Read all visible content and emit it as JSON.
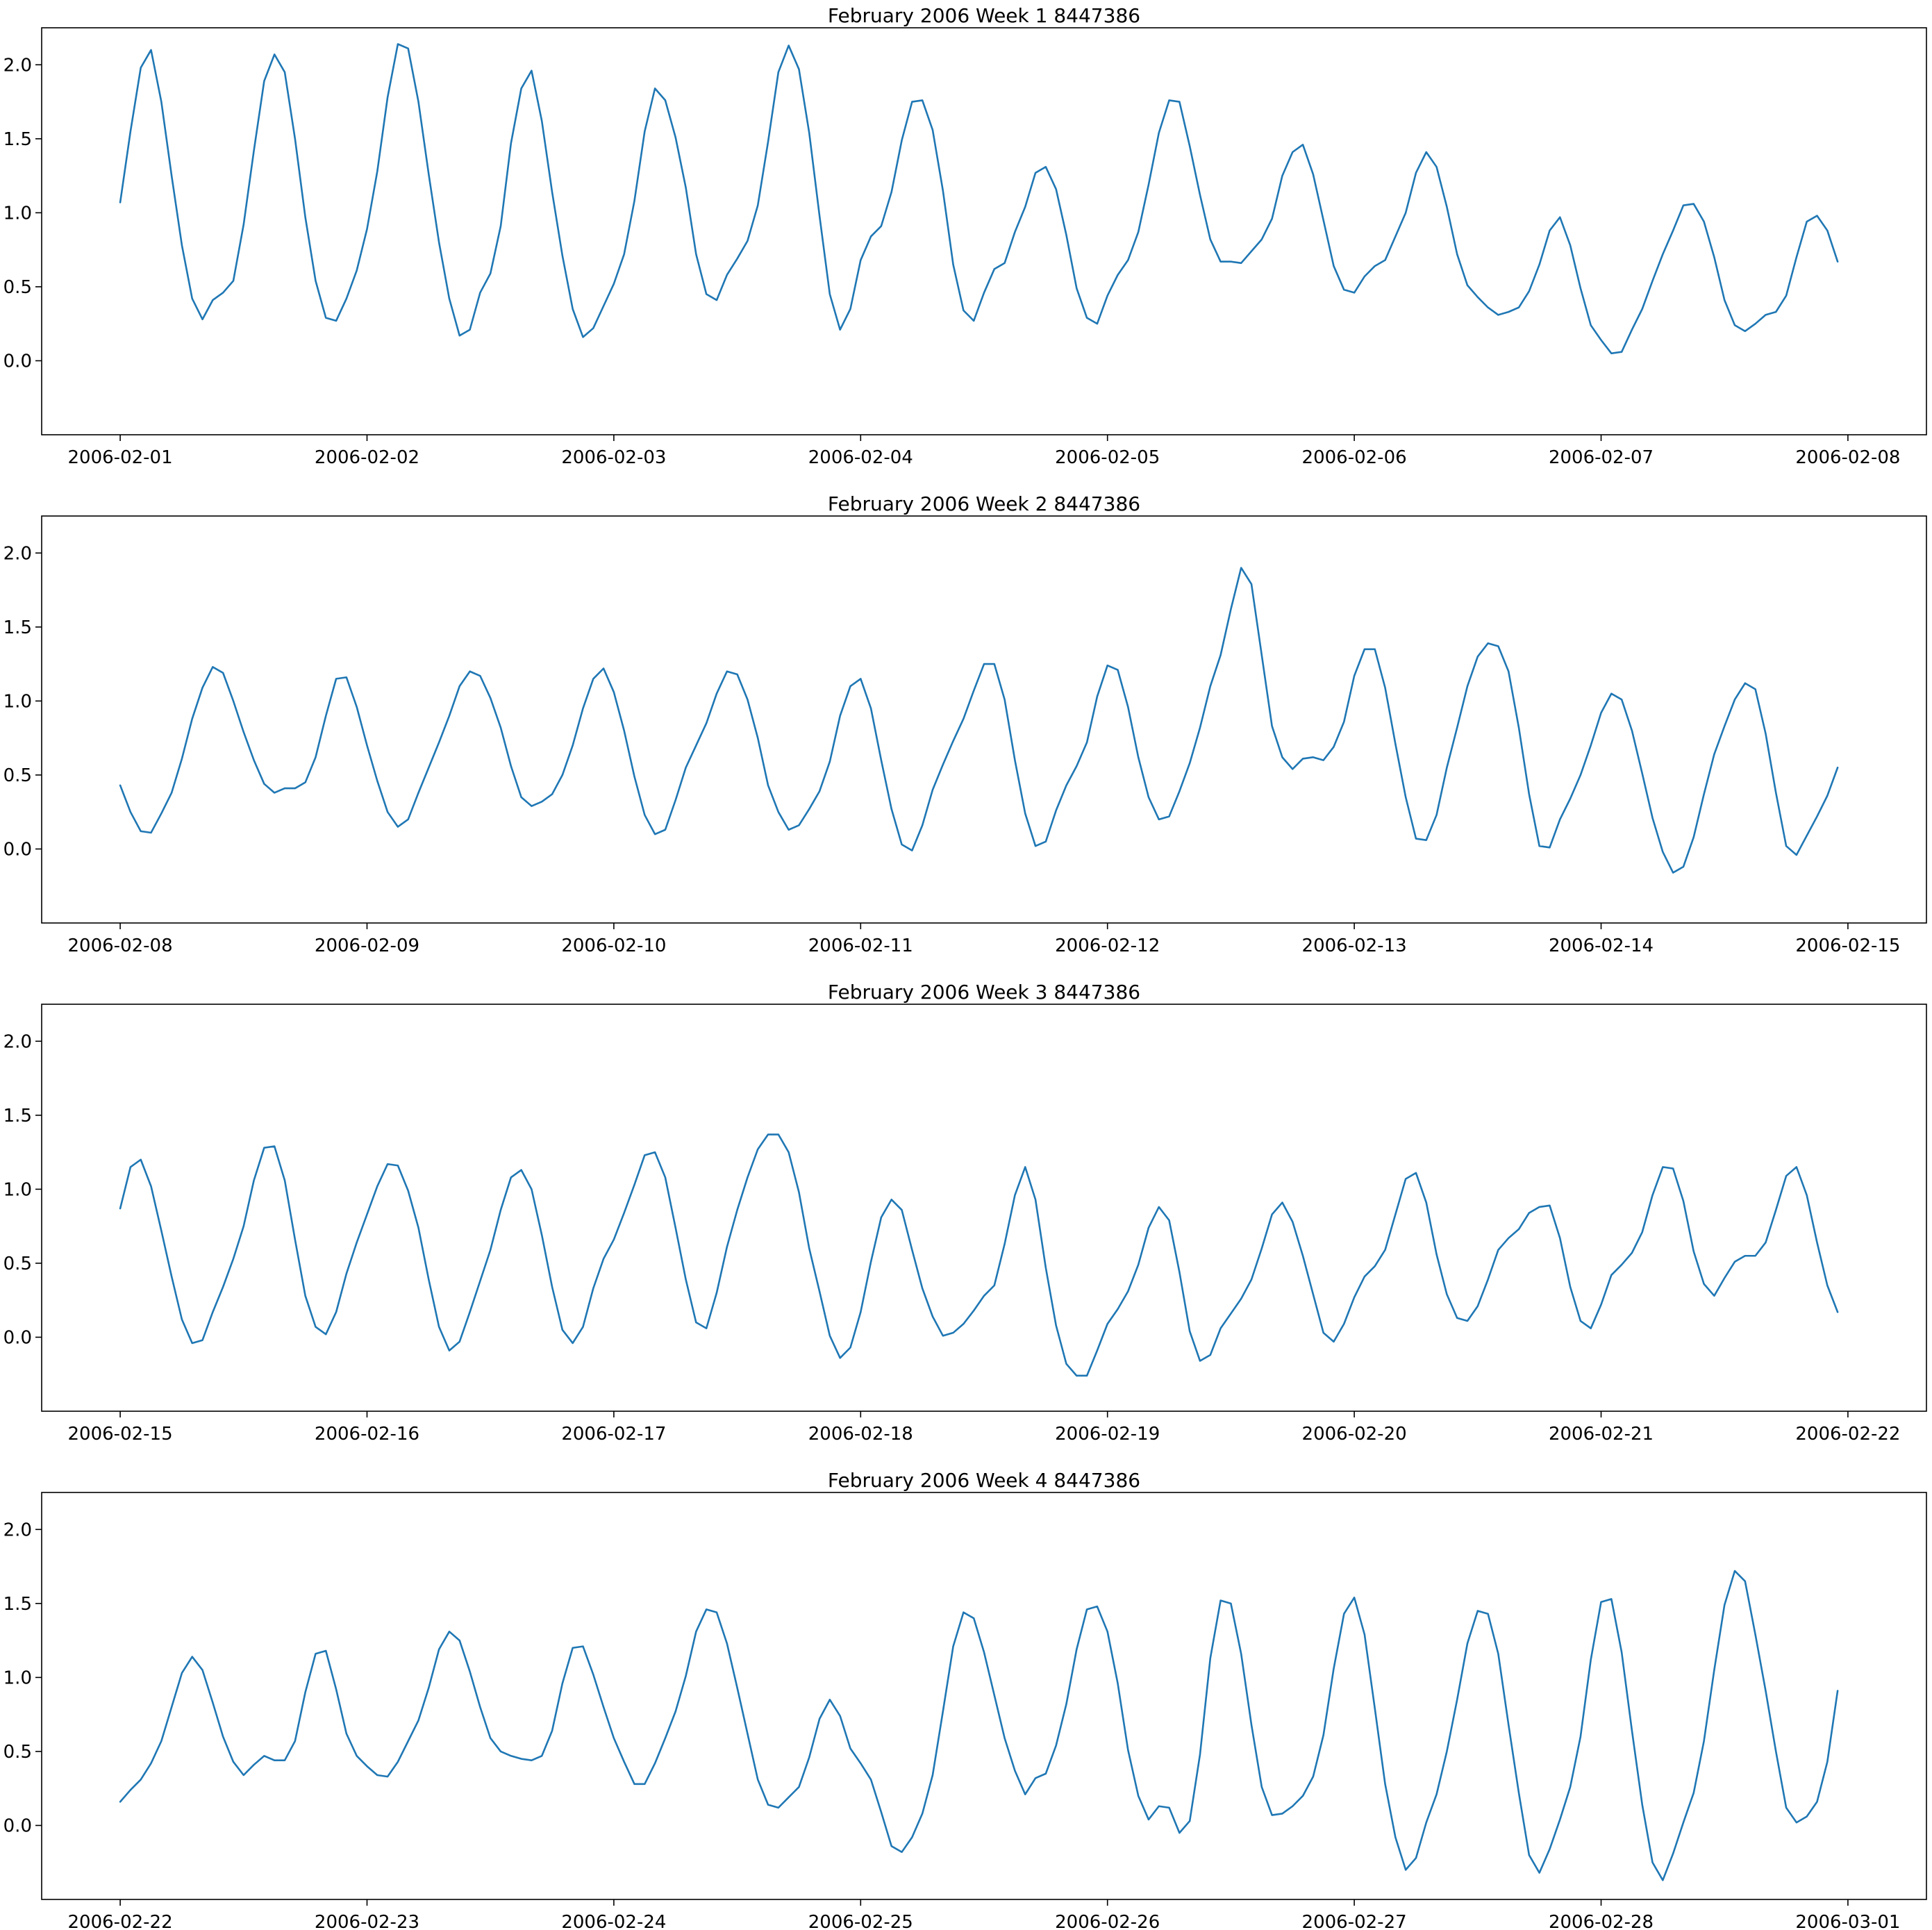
{
  "figure": {
    "line_color": "#1f77b4"
  },
  "chart_data": [
    {
      "type": "line",
      "title": "February 2006 Week 1 8447386",
      "xlabel": "",
      "ylabel": "",
      "xlim": [
        "2006-02-01",
        "2006-02-08"
      ],
      "ylim": [
        -0.5,
        2.25
      ],
      "x_tick_labels": [
        "2006-02-01",
        "2006-02-02",
        "2006-02-03",
        "2006-02-04",
        "2006-02-05",
        "2006-02-06",
        "2006-02-07",
        "2006-02-08"
      ],
      "y_tick_labels": [
        "0.0",
        "0.5",
        "1.0",
        "1.5",
        "2.0"
      ],
      "grid": false,
      "series": [
        {
          "start": "2006-02-01 00:00",
          "interval_hours": 1,
          "values": [
            1.07,
            1.55,
            1.98,
            2.1,
            1.75,
            1.25,
            0.78,
            0.42,
            0.28,
            0.41,
            0.46,
            0.54,
            0.92,
            1.42,
            1.89,
            2.07,
            1.95,
            1.5,
            0.97,
            0.54,
            0.29,
            0.27,
            0.42,
            0.61,
            0.89,
            1.28,
            1.78,
            2.14,
            2.11,
            1.75,
            1.26,
            0.8,
            0.42,
            0.17,
            0.21,
            0.46,
            0.59,
            0.91,
            1.47,
            1.84,
            1.96,
            1.62,
            1.14,
            0.71,
            0.35,
            0.16,
            0.22,
            0.37,
            0.52,
            0.72,
            1.08,
            1.55,
            1.84,
            1.76,
            1.51,
            1.17,
            0.72,
            0.45,
            0.41,
            0.58,
            0.69,
            0.81,
            1.05,
            1.48,
            1.95,
            2.13,
            1.97,
            1.54,
            0.98,
            0.45,
            0.21,
            0.35,
            0.68,
            0.84,
            0.91,
            1.14,
            1.49,
            1.75,
            1.76,
            1.56,
            1.15,
            0.65,
            0.34,
            0.27,
            0.46,
            0.62,
            0.66,
            0.87,
            1.04,
            1.27,
            1.31,
            1.16,
            0.85,
            0.49,
            0.29,
            0.25,
            0.44,
            0.58,
            0.68,
            0.87,
            1.19,
            1.54,
            1.76,
            1.75,
            1.45,
            1.12,
            0.82,
            0.67,
            0.67,
            0.66,
            0.74,
            0.82,
            0.96,
            1.25,
            1.41,
            1.46,
            1.26,
            0.95,
            0.64,
            0.48,
            0.46,
            0.57,
            0.64,
            0.68,
            0.84,
            1.0,
            1.27,
            1.41,
            1.31,
            1.04,
            0.72,
            0.51,
            0.43,
            0.36,
            0.31,
            0.33,
            0.36,
            0.47,
            0.65,
            0.88,
            0.97,
            0.78,
            0.49,
            0.24,
            0.14,
            0.05,
            0.06,
            0.21,
            0.35,
            0.54,
            0.72,
            0.88,
            1.05,
            1.06,
            0.94,
            0.7,
            0.41,
            0.24,
            0.2,
            0.25,
            0.31,
            0.33,
            0.44,
            0.7,
            0.94,
            0.98,
            0.88,
            0.67
          ]
        }
      ]
    },
    {
      "type": "line",
      "title": "February 2006 Week 2 8447386",
      "xlabel": "",
      "ylabel": "",
      "xlim": [
        "2006-02-08",
        "2006-02-15"
      ],
      "ylim": [
        -0.5,
        2.25
      ],
      "x_tick_labels": [
        "2006-02-08",
        "2006-02-09",
        "2006-02-10",
        "2006-02-11",
        "2006-02-12",
        "2006-02-13",
        "2006-02-14",
        "2006-02-15"
      ],
      "y_tick_labels": [
        "0.0",
        "0.5",
        "1.0",
        "1.5",
        "2.0"
      ],
      "grid": false,
      "series": [
        {
          "start": "2006-02-08 00:00",
          "interval_hours": 1,
          "values": [
            0.43,
            0.25,
            0.12,
            0.11,
            0.24,
            0.38,
            0.61,
            0.88,
            1.09,
            1.23,
            1.19,
            1.0,
            0.79,
            0.6,
            0.44,
            0.38,
            0.41,
            0.41,
            0.45,
            0.62,
            0.9,
            1.15,
            1.16,
            0.96,
            0.7,
            0.46,
            0.25,
            0.15,
            0.2,
            0.38,
            0.55,
            0.72,
            0.9,
            1.1,
            1.2,
            1.17,
            1.02,
            0.82,
            0.56,
            0.35,
            0.29,
            0.32,
            0.37,
            0.5,
            0.7,
            0.95,
            1.15,
            1.22,
            1.06,
            0.8,
            0.49,
            0.23,
            0.1,
            0.13,
            0.33,
            0.55,
            0.7,
            0.85,
            1.05,
            1.2,
            1.18,
            1.01,
            0.75,
            0.43,
            0.25,
            0.13,
            0.16,
            0.27,
            0.39,
            0.59,
            0.9,
            1.1,
            1.15,
            0.95,
            0.6,
            0.27,
            0.03,
            -0.01,
            0.16,
            0.4,
            0.57,
            0.73,
            0.88,
            1.07,
            1.25,
            1.25,
            1.01,
            0.6,
            0.24,
            0.02,
            0.05,
            0.26,
            0.43,
            0.56,
            0.72,
            1.03,
            1.24,
            1.21,
            0.96,
            0.62,
            0.35,
            0.2,
            0.22,
            0.39,
            0.58,
            0.82,
            1.1,
            1.31,
            1.62,
            1.9,
            1.79,
            1.31,
            0.83,
            0.62,
            0.54,
            0.61,
            0.62,
            0.6,
            0.69,
            0.86,
            1.17,
            1.35,
            1.35,
            1.09,
            0.71,
            0.35,
            0.07,
            0.06,
            0.23,
            0.55,
            0.82,
            1.1,
            1.3,
            1.39,
            1.37,
            1.2,
            0.82,
            0.37,
            0.02,
            0.01,
            0.2,
            0.34,
            0.5,
            0.7,
            0.92,
            1.05,
            1.01,
            0.8,
            0.51,
            0.21,
            -0.02,
            -0.16,
            -0.12,
            0.08,
            0.37,
            0.64,
            0.83,
            1.01,
            1.12,
            1.08,
            0.78,
            0.38,
            0.02,
            -0.04,
            0.09,
            0.22,
            0.36,
            0.55
          ]
        }
      ]
    },
    {
      "type": "line",
      "title": "February 2006 Week 3 8447386",
      "xlabel": "",
      "ylabel": "",
      "xlim": [
        "2006-02-15",
        "2006-02-22"
      ],
      "ylim": [
        -0.5,
        2.25
      ],
      "x_tick_labels": [
        "2006-02-15",
        "2006-02-16",
        "2006-02-17",
        "2006-02-18",
        "2006-02-19",
        "2006-02-20",
        "2006-02-21",
        "2006-02-22"
      ],
      "y_tick_labels": [
        "0.0",
        "0.5",
        "1.0",
        "1.5",
        "2.0"
      ],
      "grid": false,
      "series": [
        {
          "start": "2006-02-15 00:00",
          "interval_hours": 1,
          "values": [
            0.87,
            1.15,
            1.2,
            1.02,
            0.72,
            0.41,
            0.12,
            -0.04,
            -0.02,
            0.17,
            0.34,
            0.53,
            0.75,
            1.06,
            1.28,
            1.29,
            1.06,
            0.66,
            0.28,
            0.07,
            0.02,
            0.17,
            0.43,
            0.64,
            0.83,
            1.02,
            1.17,
            1.16,
            0.99,
            0.74,
            0.39,
            0.07,
            -0.09,
            -0.03,
            0.17,
            0.38,
            0.59,
            0.86,
            1.08,
            1.13,
            1.0,
            0.69,
            0.34,
            0.05,
            -0.04,
            0.07,
            0.33,
            0.53,
            0.66,
            0.84,
            1.03,
            1.23,
            1.25,
            1.08,
            0.74,
            0.39,
            0.1,
            0.06,
            0.3,
            0.61,
            0.86,
            1.08,
            1.27,
            1.37,
            1.37,
            1.25,
            0.98,
            0.6,
            0.31,
            0.01,
            -0.14,
            -0.07,
            0.17,
            0.51,
            0.81,
            0.93,
            0.86,
            0.59,
            0.33,
            0.14,
            0.01,
            0.03,
            0.09,
            0.18,
            0.28,
            0.35,
            0.63,
            0.96,
            1.15,
            0.93,
            0.47,
            0.08,
            -0.18,
            -0.26,
            -0.26,
            -0.09,
            0.09,
            0.19,
            0.31,
            0.49,
            0.74,
            0.88,
            0.79,
            0.44,
            0.04,
            -0.16,
            -0.12,
            0.06,
            0.16,
            0.26,
            0.39,
            0.6,
            0.83,
            0.91,
            0.78,
            0.55,
            0.29,
            0.03,
            -0.03,
            0.09,
            0.27,
            0.41,
            0.48,
            0.59,
            0.83,
            1.07,
            1.11,
            0.91,
            0.56,
            0.29,
            0.13,
            0.11,
            0.21,
            0.39,
            0.59,
            0.67,
            0.73,
            0.84,
            0.88,
            0.89,
            0.67,
            0.34,
            0.11,
            0.06,
            0.22,
            0.42,
            0.49,
            0.57,
            0.71,
            0.96,
            1.15,
            1.14,
            0.92,
            0.58,
            0.36,
            0.28,
            0.4,
            0.51,
            0.55,
            0.55,
            0.64,
            0.86,
            1.09,
            1.15,
            0.96,
            0.64,
            0.35,
            0.17
          ]
        }
      ]
    },
    {
      "type": "line",
      "title": "February 2006 Week 4 8447386",
      "xlabel": "",
      "ylabel": "",
      "xlim": [
        "2006-02-22",
        "2006-03-01"
      ],
      "ylim": [
        -0.5,
        2.25
      ],
      "x_tick_labels": [
        "2006-02-22",
        "2006-02-23",
        "2006-02-24",
        "2006-02-25",
        "2006-02-26",
        "2006-02-27",
        "2006-02-28",
        "2006-03-01"
      ],
      "y_tick_labels": [
        "0.0",
        "0.5",
        "1.0",
        "1.5",
        "2.0"
      ],
      "grid": false,
      "series": [
        {
          "start": "2006-02-22 00:00",
          "interval_hours": 1,
          "values": [
            0.16,
            0.24,
            0.31,
            0.42,
            0.57,
            0.8,
            1.03,
            1.14,
            1.05,
            0.83,
            0.6,
            0.43,
            0.34,
            0.41,
            0.47,
            0.44,
            0.44,
            0.57,
            0.9,
            1.16,
            1.18,
            0.92,
            0.62,
            0.47,
            0.4,
            0.34,
            0.33,
            0.43,
            0.57,
            0.71,
            0.93,
            1.19,
            1.31,
            1.25,
            1.04,
            0.8,
            0.59,
            0.5,
            0.47,
            0.45,
            0.44,
            0.47,
            0.64,
            0.96,
            1.2,
            1.21,
            1.02,
            0.8,
            0.59,
            0.43,
            0.28,
            0.28,
            0.42,
            0.59,
            0.77,
            1.01,
            1.31,
            1.46,
            1.44,
            1.23,
            0.93,
            0.62,
            0.31,
            0.14,
            0.12,
            0.19,
            0.26,
            0.46,
            0.72,
            0.85,
            0.74,
            0.52,
            0.42,
            0.31,
            0.09,
            -0.14,
            -0.18,
            -0.08,
            0.08,
            0.34,
            0.77,
            1.21,
            1.44,
            1.4,
            1.17,
            0.88,
            0.59,
            0.37,
            0.21,
            0.32,
            0.35,
            0.54,
            0.82,
            1.19,
            1.46,
            1.48,
            1.31,
            0.96,
            0.51,
            0.2,
            0.04,
            0.13,
            0.12,
            -0.05,
            0.03,
            0.48,
            1.13,
            1.52,
            1.5,
            1.16,
            0.68,
            0.26,
            0.07,
            0.08,
            0.13,
            0.2,
            0.33,
            0.61,
            1.06,
            1.43,
            1.54,
            1.29,
            0.79,
            0.28,
            -0.08,
            -0.3,
            -0.22,
            0.02,
            0.21,
            0.5,
            0.85,
            1.23,
            1.45,
            1.43,
            1.16,
            0.68,
            0.22,
            -0.2,
            -0.32,
            -0.16,
            0.04,
            0.26,
            0.6,
            1.12,
            1.51,
            1.53,
            1.17,
            0.64,
            0.14,
            -0.25,
            -0.37,
            -0.19,
            0.02,
            0.22,
            0.57,
            1.05,
            1.49,
            1.72,
            1.65,
            1.29,
            0.91,
            0.5,
            0.12,
            0.02,
            0.06,
            0.16,
            0.43,
            0.91
          ]
        }
      ]
    }
  ]
}
